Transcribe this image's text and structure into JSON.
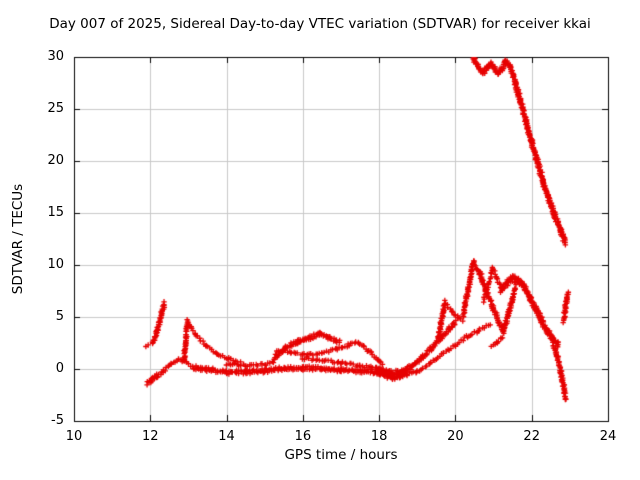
{
  "chart_data": {
    "type": "scatter",
    "title": "Day 007 of 2025, Sidereal Day-to-day VTEC variation (SDTVAR) for receiver kkai",
    "xlabel": "GPS time / hours",
    "ylabel": "SDTVAR / TECUs",
    "xlim": [
      10,
      24
    ],
    "ylim": [
      -5,
      30
    ],
    "xticks": [
      10,
      12,
      14,
      16,
      18,
      20,
      22,
      24
    ],
    "yticks": [
      -5,
      0,
      5,
      10,
      15,
      20,
      25,
      30
    ],
    "grid": true,
    "marker": "plus",
    "marker_color": "#e60000",
    "grid_color": "#c8c8c8",
    "axis_color": "#000000",
    "series": [
      {
        "name": "SDTVAR",
        "segments": [
          {
            "d": 1,
            "p": [
              [
                11.88,
                2.15
              ],
              [
                11.93,
                2.35
              ]
            ]
          },
          {
            "d": 2,
            "p": [
              [
                12.07,
                2.5
              ],
              [
                12.2,
                3.9
              ],
              [
                12.3,
                5.3
              ],
              [
                12.36,
                6.3
              ]
            ]
          },
          {
            "d": 2,
            "p": [
              [
                11.93,
                -1.4
              ],
              [
                12.05,
                -1.0
              ],
              [
                12.18,
                -0.6
              ]
            ]
          },
          {
            "d": 1,
            "p": [
              [
                12.15,
                -0.9
              ],
              [
                12.35,
                -0.2
              ],
              [
                12.55,
                0.5
              ],
              [
                12.75,
                0.9
              ],
              [
                12.95,
                0.6
              ],
              [
                13.15,
                0.1
              ],
              [
                13.35,
                0.0
              ]
            ]
          },
          {
            "d": 2,
            "p": [
              [
                12.88,
                0.8
              ],
              [
                12.93,
                2.6
              ],
              [
                12.98,
                4.6
              ]
            ]
          },
          {
            "d": 1,
            "p": [
              [
                12.98,
                4.5
              ],
              [
                13.2,
                3.3
              ],
              [
                13.45,
                2.3
              ],
              [
                13.75,
                1.5
              ],
              [
                14.05,
                1.0
              ],
              [
                14.35,
                0.7
              ]
            ]
          },
          {
            "d": 2,
            "p": [
              [
                13.2,
                0.1
              ],
              [
                13.6,
                -0.1
              ],
              [
                14.0,
                -0.3
              ],
              [
                14.5,
                -0.3
              ],
              [
                15.0,
                -0.15
              ],
              [
                15.5,
                0.0
              ],
              [
                16.0,
                0.1
              ],
              [
                16.5,
                0.0
              ],
              [
                17.0,
                -0.1
              ],
              [
                17.5,
                -0.15
              ],
              [
                18.0,
                -0.3
              ],
              [
                18.3,
                -0.5
              ]
            ]
          },
          {
            "d": 1,
            "p": [
              [
                14.0,
                0.5
              ],
              [
                14.5,
                0.35
              ],
              [
                15.0,
                0.45
              ],
              [
                15.25,
                0.7
              ]
            ]
          },
          {
            "d": 2,
            "p": [
              [
                15.25,
                1.1
              ],
              [
                15.55,
                2.0
              ],
              [
                15.85,
                2.6
              ],
              [
                16.15,
                3.0
              ],
              [
                16.45,
                3.4
              ],
              [
                16.7,
                3.0
              ],
              [
                16.95,
                2.6
              ]
            ]
          },
          {
            "d": 1,
            "p": [
              [
                15.3,
                1.8
              ],
              [
                15.7,
                1.6
              ],
              [
                16.1,
                1.35
              ],
              [
                16.5,
                1.55
              ],
              [
                16.9,
                1.9
              ],
              [
                17.2,
                2.3
              ],
              [
                17.45,
                2.6
              ],
              [
                17.7,
                1.8
              ],
              [
                17.95,
                1.0
              ],
              [
                18.1,
                0.5
              ]
            ]
          },
          {
            "d": 1,
            "p": [
              [
                16.0,
                1.0
              ],
              [
                16.5,
                0.85
              ],
              [
                17.0,
                0.6
              ],
              [
                17.5,
                0.3
              ],
              [
                18.0,
                0.05
              ]
            ]
          },
          {
            "d": 3,
            "p": [
              [
                17.95,
                -0.2
              ],
              [
                18.15,
                -0.55
              ],
              [
                18.35,
                -0.75
              ],
              [
                18.55,
                -0.6
              ],
              [
                18.7,
                -0.35
              ]
            ]
          },
          {
            "d": 2,
            "p": [
              [
                18.0,
                -0.05
              ],
              [
                18.25,
                -0.25
              ],
              [
                18.5,
                -0.35
              ],
              [
                18.7,
                -0.15
              ]
            ]
          },
          {
            "d": 2,
            "p": [
              [
                18.6,
                -0.3
              ],
              [
                18.85,
                0.25
              ],
              [
                19.1,
                1.0
              ],
              [
                19.35,
                1.9
              ],
              [
                19.6,
                2.9
              ],
              [
                19.85,
                3.9
              ],
              [
                20.0,
                4.5
              ]
            ]
          },
          {
            "d": 1,
            "p": [
              [
                18.7,
                -0.6
              ],
              [
                19.0,
                -0.2
              ],
              [
                19.35,
                0.6
              ],
              [
                19.7,
                1.5
              ],
              [
                20.0,
                2.3
              ],
              [
                20.3,
                3.1
              ],
              [
                20.6,
                3.7
              ],
              [
                20.9,
                4.3
              ]
            ]
          },
          {
            "d": 2,
            "p": [
              [
                19.55,
                3.1
              ],
              [
                19.62,
                4.3
              ],
              [
                19.68,
                5.5
              ],
              [
                19.73,
                6.4
              ]
            ]
          },
          {
            "d": 1,
            "p": [
              [
                19.73,
                6.3
              ],
              [
                19.9,
                5.6
              ],
              [
                20.05,
                5.0
              ],
              [
                20.2,
                4.7
              ]
            ]
          },
          {
            "d": 2,
            "p": [
              [
                20.2,
                5.2
              ],
              [
                20.3,
                7.0
              ],
              [
                20.4,
                8.8
              ],
              [
                20.47,
                10.3
              ]
            ]
          },
          {
            "d": 1,
            "p": [
              [
                20.47,
                10.3
              ],
              [
                20.57,
                9.6
              ],
              [
                20.67,
                9.1
              ]
            ]
          },
          {
            "d": 2,
            "p": [
              [
                20.62,
                9.3
              ],
              [
                20.8,
                7.6
              ],
              [
                21.0,
                5.8
              ],
              [
                21.15,
                4.4
              ],
              [
                21.25,
                3.6
              ]
            ]
          },
          {
            "d": 1,
            "p": [
              [
                20.72,
                6.4
              ],
              [
                20.86,
                8.1
              ],
              [
                20.97,
                9.7
              ]
            ]
          },
          {
            "d": 1,
            "p": [
              [
                20.97,
                9.7
              ],
              [
                21.1,
                8.6
              ],
              [
                21.25,
                7.5
              ]
            ]
          },
          {
            "d": 1,
            "p": [
              [
                20.95,
                2.1
              ],
              [
                21.1,
                2.6
              ],
              [
                21.25,
                3.1
              ]
            ]
          },
          {
            "d": 2,
            "p": [
              [
                21.25,
                3.6
              ],
              [
                21.38,
                5.2
              ],
              [
                21.5,
                6.8
              ],
              [
                21.58,
                7.9
              ]
            ]
          },
          {
            "d": 3,
            "p": [
              [
                21.2,
                7.6
              ],
              [
                21.35,
                8.3
              ],
              [
                21.5,
                8.7
              ],
              [
                21.65,
                8.5
              ],
              [
                21.8,
                7.9
              ],
              [
                21.95,
                6.9
              ],
              [
                22.1,
                5.8
              ],
              [
                22.25,
                4.7
              ],
              [
                22.4,
                3.7
              ],
              [
                22.55,
                2.9
              ],
              [
                22.7,
                2.3
              ]
            ]
          },
          {
            "d": 2,
            "p": [
              [
                22.55,
                2.6
              ],
              [
                22.67,
                1.2
              ],
              [
                22.77,
                -0.4
              ],
              [
                22.84,
                -1.7
              ],
              [
                22.89,
                -2.9
              ]
            ]
          },
          {
            "d": 2,
            "p": [
              [
                22.83,
                4.6
              ],
              [
                22.88,
                5.7
              ],
              [
                22.92,
                6.8
              ],
              [
                22.95,
                7.3
              ]
            ]
          },
          {
            "d": 2,
            "p": [
              [
                20.43,
                30.3
              ],
              [
                20.5,
                29.7
              ],
              [
                20.6,
                29.0
              ],
              [
                20.72,
                28.5
              ],
              [
                20.82,
                28.9
              ],
              [
                20.92,
                29.3
              ],
              [
                21.02,
                28.9
              ],
              [
                21.12,
                28.4
              ],
              [
                21.22,
                28.9
              ],
              [
                21.32,
                29.6
              ],
              [
                21.42,
                29.2
              ],
              [
                21.52,
                28.2
              ],
              [
                21.57,
                27.5
              ]
            ]
          },
          {
            "d": 3,
            "p": [
              [
                21.57,
                27.5
              ],
              [
                21.7,
                25.8
              ],
              [
                21.85,
                23.8
              ],
              [
                22.0,
                21.8
              ],
              [
                22.15,
                19.9
              ],
              [
                22.3,
                18.0
              ],
              [
                22.45,
                16.4
              ],
              [
                22.6,
                14.8
              ],
              [
                22.75,
                13.4
              ],
              [
                22.88,
                12.2
              ]
            ]
          }
        ]
      }
    ]
  }
}
